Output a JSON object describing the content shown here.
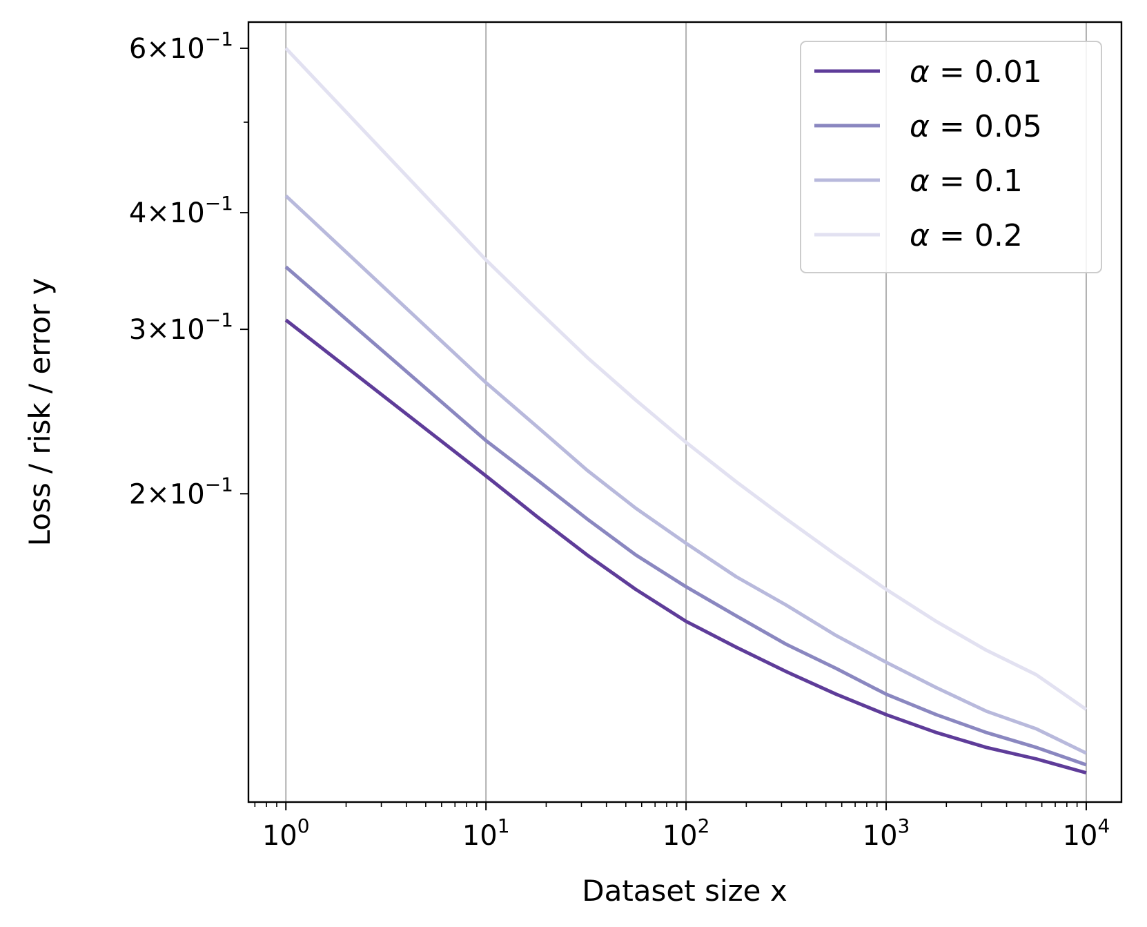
{
  "chart_data": {
    "type": "line",
    "xscale": "log",
    "yscale": "log",
    "xlabel": "Dataset size x",
    "ylabel": "Loss / risk / error y",
    "xlim": [
      0.65,
      15000
    ],
    "ylim": [
      0.0935,
      0.64
    ],
    "grid": "x-major",
    "legend_position": "top-right",
    "x_ticks": [
      {
        "value": 1,
        "base": "10",
        "exp": "0"
      },
      {
        "value": 10,
        "base": "10",
        "exp": "1"
      },
      {
        "value": 100,
        "base": "10",
        "exp": "2"
      },
      {
        "value": 1000,
        "base": "10",
        "exp": "3"
      },
      {
        "value": 10000,
        "base": "10",
        "exp": "4"
      }
    ],
    "y_ticks": [
      {
        "value": 0.2,
        "mant": "2",
        "base": "10",
        "exp": "−1"
      },
      {
        "value": 0.3,
        "mant": "3",
        "base": "10",
        "exp": "−1"
      },
      {
        "value": 0.4,
        "mant": "4",
        "base": "10",
        "exp": "−1"
      },
      {
        "value": 0.6,
        "mant": "6",
        "base": "10",
        "exp": "−1"
      }
    ],
    "y_minor_ticks": [
      0.5
    ],
    "x": [
      1,
      10,
      18,
      32,
      56,
      100,
      178,
      316,
      562,
      1000,
      1778,
      3162,
      5623,
      10000
    ],
    "series": [
      {
        "name": "α = 0.01",
        "greek": "α",
        "eq": " = 0.01",
        "color": "#5e3c99",
        "values": [
          0.307,
          0.209,
          0.189,
          0.172,
          0.158,
          0.146,
          0.137,
          0.129,
          0.122,
          0.116,
          0.111,
          0.107,
          0.104,
          0.1005
        ]
      },
      {
        "name": "α = 0.05",
        "greek": "α",
        "eq": " = 0.05",
        "color": "#8a87c0",
        "values": [
          0.35,
          0.228,
          0.207,
          0.188,
          0.172,
          0.159,
          0.148,
          0.138,
          0.13,
          0.122,
          0.116,
          0.111,
          0.107,
          0.1025
        ]
      },
      {
        "name": "α = 0.1",
        "greek": "α",
        "eq": " = 0.1",
        "color": "#b8b9dc",
        "values": [
          0.417,
          0.263,
          0.236,
          0.212,
          0.193,
          0.177,
          0.163,
          0.152,
          0.141,
          0.132,
          0.124,
          0.117,
          0.112,
          0.1055
        ]
      },
      {
        "name": "α = 0.2",
        "greek": "α",
        "eq": " = 0.2",
        "color": "#e2e1f1",
        "values": [
          0.6,
          0.356,
          0.315,
          0.28,
          0.252,
          0.227,
          0.206,
          0.188,
          0.172,
          0.158,
          0.146,
          0.136,
          0.128,
          0.1175
        ]
      }
    ]
  }
}
